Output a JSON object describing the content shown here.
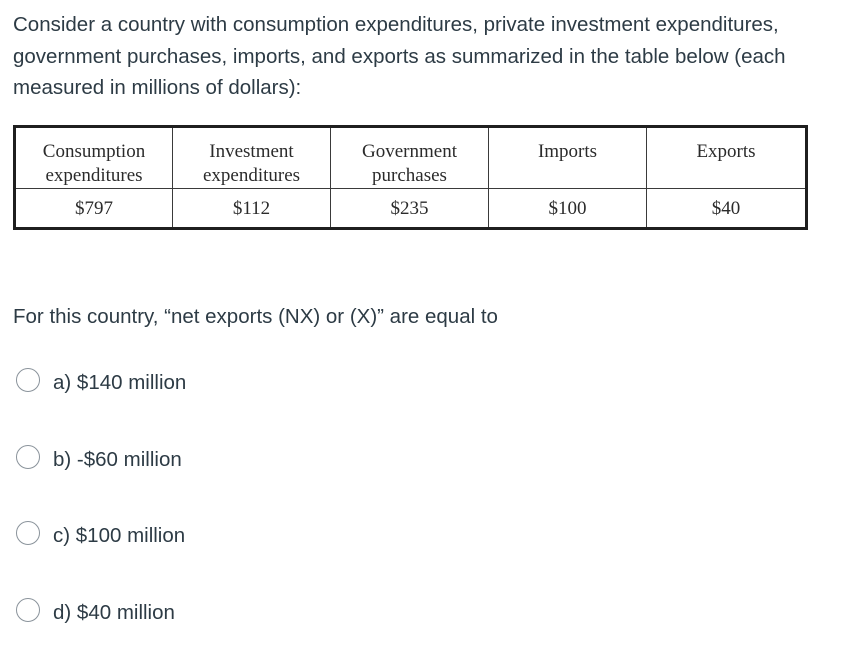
{
  "intro_text": "Consider a country with consumption expenditures, private investment expenditures, government purchases, imports, and exports as summarized in the table below (each measured in millions of dollars):",
  "table": {
    "headers": [
      "Consumption\nexpenditures",
      "Investment\nexpenditures",
      "Government\npurchases",
      "Imports",
      "Exports"
    ],
    "values": [
      "$797",
      "$112",
      "$235",
      "$100",
      "$40"
    ]
  },
  "question_text": "For this country, “net exports (NX) or (X)” are equal to",
  "options": [
    {
      "label": "a)  $140 million"
    },
    {
      "label": "b)  -$60 million"
    },
    {
      "label": "c)  $100 million"
    },
    {
      "label": "d)  $40 million"
    }
  ]
}
